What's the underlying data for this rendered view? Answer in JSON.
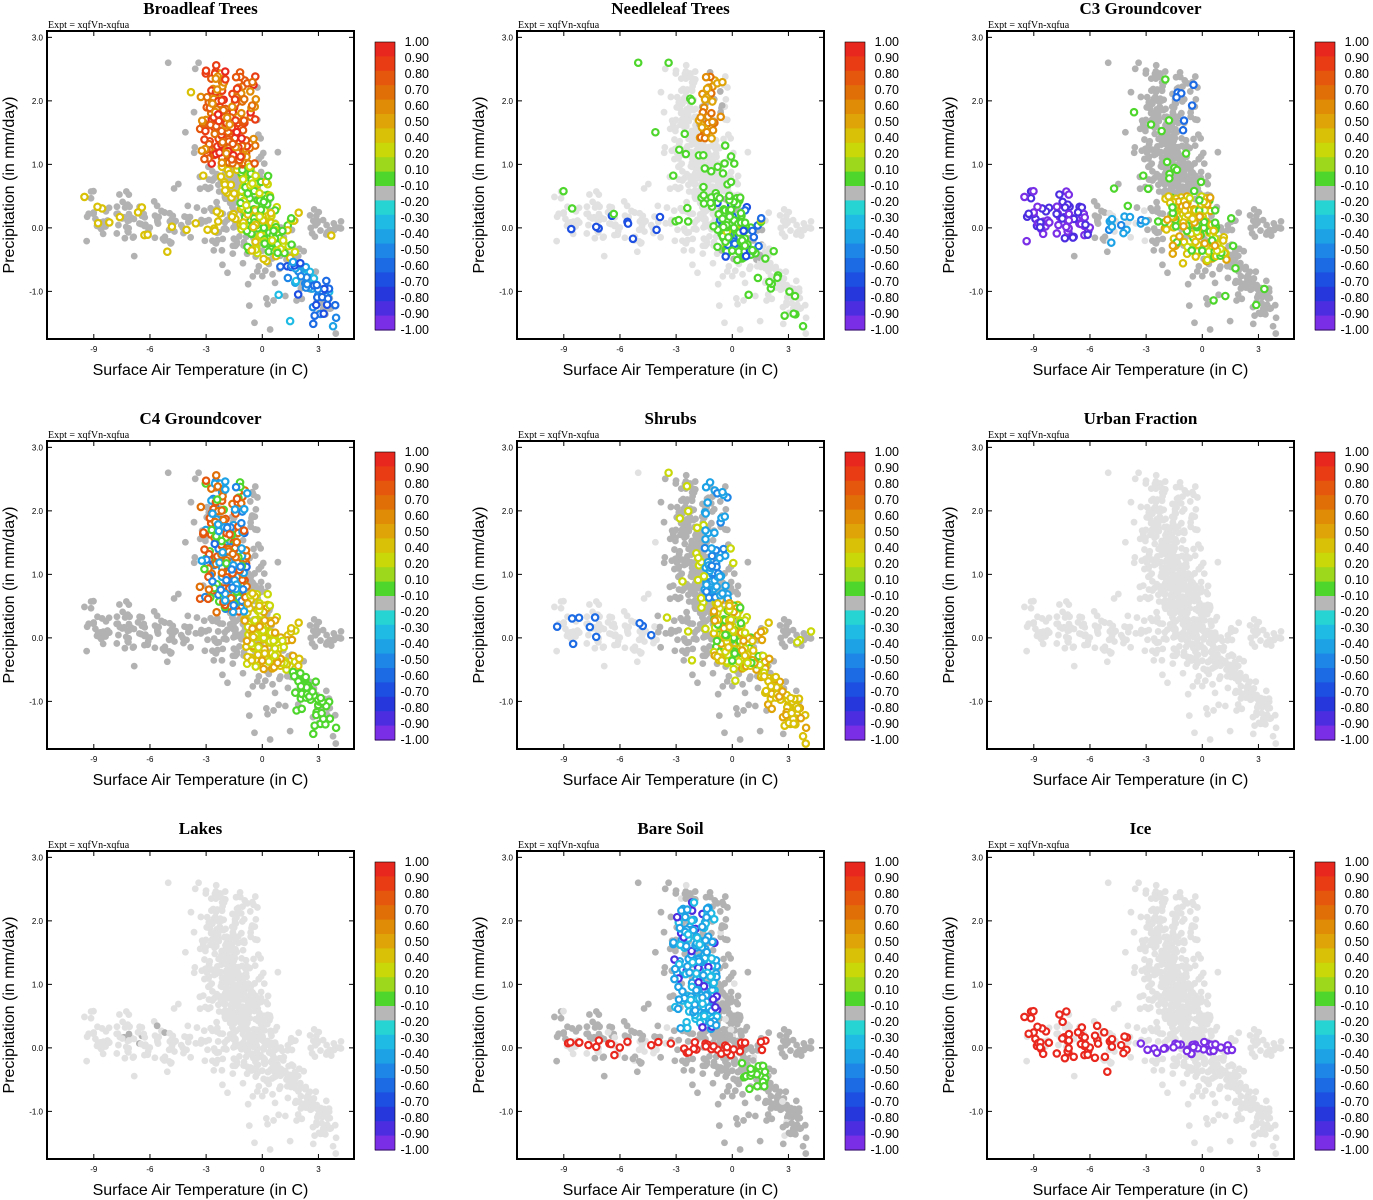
{
  "chart_data": {
    "type": "scatter",
    "experiment_label": "Expt = xqfVn-xqfua",
    "xlabel": "Surface Air Temperature (in C)",
    "ylabel": "Precipitation (in mm/day)",
    "xlim": [
      -11.5,
      4.9
    ],
    "ylim": [
      -1.75,
      3.1
    ],
    "xticks": [
      -9,
      -6,
      -3,
      0,
      3
    ],
    "xtick_labels": [
      "-9",
      "-6",
      "-3",
      "0",
      "3"
    ],
    "yticks": [
      -1,
      0,
      1,
      2,
      3
    ],
    "ytick_labels": [
      "-1.0",
      "0.0",
      "1.0",
      "2.0",
      "3.0"
    ],
    "colorbar": {
      "labels": [
        "1.00",
        "0.90",
        "0.80",
        "0.70",
        "0.60",
        "0.50",
        "0.40",
        "0.20",
        "0.10",
        "-0.10",
        "-0.20",
        "-0.30",
        "-0.40",
        "-0.50",
        "-0.60",
        "-0.70",
        "-0.80",
        "-0.90",
        "-1.00"
      ],
      "colors": [
        "#e8281e",
        "#ea3c14",
        "#e4570d",
        "#e16f08",
        "#e08c07",
        "#dfa408",
        "#d8c106",
        "#c8d808",
        "#9ed81c",
        "#4ed62c",
        "#b7b7b7",
        "#27d4d4",
        "#1fbbe4",
        "#1ea2e6",
        "#1e86e6",
        "#1c6ae4",
        "#1c4fe2",
        "#2638dc",
        "#4c2ee0",
        "#7a2ee6"
      ]
    },
    "background_color": "#e1e1e1",
    "neutral_color": "#b2b2b2",
    "panels": [
      {
        "title": "Broadleaf Trees",
        "pattern": "broadleaf"
      },
      {
        "title": "Needleleaf Trees",
        "pattern": "needleleaf"
      },
      {
        "title": "C3 Groundcover",
        "pattern": "c3"
      },
      {
        "title": "C4 Groundcover",
        "pattern": "c4"
      },
      {
        "title": "Shrubs",
        "pattern": "shrubs"
      },
      {
        "title": "Urban Fraction",
        "pattern": "urban"
      },
      {
        "title": "Lakes",
        "pattern": "lakes"
      },
      {
        "title": "Bare Soil",
        "pattern": "bare"
      },
      {
        "title": "Ice",
        "pattern": "ice"
      }
    ]
  }
}
